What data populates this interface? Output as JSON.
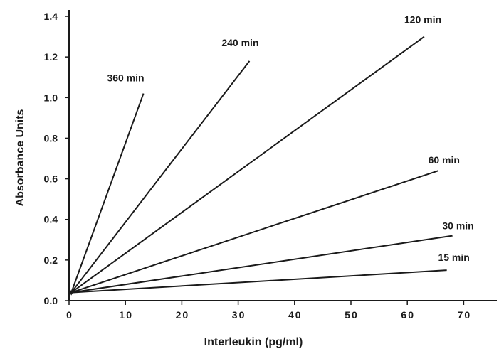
{
  "chart_data": {
    "type": "line",
    "title": "",
    "xlabel": "Interleukin  (pg/ml)",
    "ylabel": "Absorbance Units",
    "xlim": [
      0,
      75
    ],
    "ylim": [
      0,
      1.42
    ],
    "x_ticks": [
      0,
      10,
      20,
      30,
      40,
      50,
      60,
      70
    ],
    "y_ticks": [
      0.0,
      0.2,
      0.4,
      0.6,
      0.8,
      1.0,
      1.2,
      1.4
    ],
    "x_tick_labels": [
      "0",
      "10",
      "20",
      "30",
      "40",
      "50",
      "60",
      "70"
    ],
    "y_tick_labels": [
      "0.0",
      "0.2",
      "0.4",
      "0.6",
      "0.8",
      "1.0",
      "1.2",
      "1.4"
    ],
    "grid": false,
    "legend": "none (series labelled at line ends)",
    "series": [
      {
        "name": "360 min",
        "x": [
          0.4,
          13.2
        ],
        "y": [
          0.04,
          1.02
        ]
      },
      {
        "name": "240 min",
        "x": [
          0.4,
          32.0
        ],
        "y": [
          0.04,
          1.18
        ]
      },
      {
        "name": "120 min",
        "x": [
          0.4,
          63.0
        ],
        "y": [
          0.04,
          1.3
        ]
      },
      {
        "name": "60 min",
        "x": [
          0.4,
          65.5
        ],
        "y": [
          0.04,
          0.64
        ]
      },
      {
        "name": "30 min",
        "x": [
          0.4,
          68.0
        ],
        "y": [
          0.04,
          0.32
        ]
      },
      {
        "name": "15 min",
        "x": [
          0.4,
          67.0
        ],
        "y": [
          0.04,
          0.15
        ]
      }
    ]
  }
}
